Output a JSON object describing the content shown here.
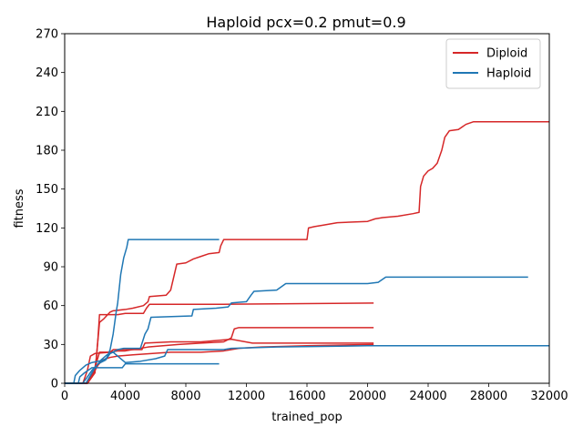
{
  "chart_data": {
    "type": "line",
    "title": "Haploid pcx=0.2 pmut=0.9",
    "xlabel": "trained_pop",
    "ylabel": "fitness",
    "xlim": [
      0,
      32000
    ],
    "ylim": [
      0,
      270
    ],
    "xticks": [
      0,
      4000,
      8000,
      12000,
      16000,
      20000,
      24000,
      28000,
      32000
    ],
    "yticks": [
      0,
      30,
      60,
      90,
      120,
      150,
      180,
      210,
      240,
      270
    ],
    "grid": false,
    "legend_position": "top-right",
    "colors": {
      "Diploid": "#d62728",
      "Haploid": "#1f77b4"
    },
    "series": [
      {
        "name": "Diploid",
        "run": 1,
        "points": [
          [
            0,
            0
          ],
          [
            1500,
            0
          ],
          [
            1800,
            5
          ],
          [
            2000,
            12
          ],
          [
            2100,
            20
          ],
          [
            2200,
            35
          ],
          [
            2300,
            53
          ],
          [
            3500,
            53
          ],
          [
            4000,
            54
          ],
          [
            5200,
            54
          ],
          [
            5400,
            58
          ],
          [
            5600,
            61
          ],
          [
            8000,
            61
          ],
          [
            10500,
            61
          ],
          [
            20400,
            62
          ]
        ]
      },
      {
        "name": "Diploid",
        "run": 2,
        "points": [
          [
            0,
            0
          ],
          [
            1500,
            0
          ],
          [
            1700,
            5
          ],
          [
            2000,
            12
          ],
          [
            2300,
            24
          ],
          [
            3000,
            24
          ],
          [
            3200,
            26
          ],
          [
            5100,
            26
          ],
          [
            5300,
            31
          ],
          [
            7000,
            32
          ],
          [
            9000,
            32
          ],
          [
            11000,
            34
          ],
          [
            12400,
            31
          ],
          [
            20400,
            31
          ]
        ]
      },
      {
        "name": "Diploid",
        "run": 3,
        "points": [
          [
            0,
            0
          ],
          [
            1200,
            0
          ],
          [
            1500,
            10
          ],
          [
            1700,
            21
          ],
          [
            2000,
            23
          ],
          [
            3000,
            24
          ],
          [
            3500,
            25
          ],
          [
            4000,
            25
          ],
          [
            5500,
            28
          ],
          [
            7500,
            30
          ],
          [
            9000,
            31
          ],
          [
            10500,
            32
          ],
          [
            11000,
            35
          ],
          [
            11200,
            42
          ],
          [
            11500,
            43
          ],
          [
            20400,
            43
          ]
        ]
      },
      {
        "name": "Diploid",
        "run": 4,
        "points": [
          [
            0,
            0
          ],
          [
            1500,
            0
          ],
          [
            1800,
            6
          ],
          [
            2200,
            14
          ],
          [
            2500,
            18
          ],
          [
            3000,
            20
          ],
          [
            3500,
            21
          ],
          [
            4500,
            22
          ],
          [
            5800,
            23
          ],
          [
            7000,
            24
          ],
          [
            9000,
            24
          ],
          [
            10500,
            25
          ],
          [
            11500,
            27
          ],
          [
            13000,
            28
          ],
          [
            16000,
            29
          ],
          [
            20400,
            30
          ]
        ]
      },
      {
        "name": "Diploid",
        "run": 5,
        "points": [
          [
            0,
            0
          ],
          [
            1500,
            0
          ],
          [
            2000,
            8
          ],
          [
            2300,
            47
          ],
          [
            2600,
            50
          ],
          [
            3000,
            55
          ],
          [
            3200,
            56
          ],
          [
            4000,
            57
          ],
          [
            4500,
            58
          ],
          [
            5200,
            60
          ],
          [
            5500,
            63
          ],
          [
            5600,
            67
          ],
          [
            6700,
            68
          ],
          [
            7000,
            72
          ],
          [
            7400,
            92
          ],
          [
            8000,
            93
          ],
          [
            8500,
            96
          ],
          [
            9000,
            98
          ],
          [
            9500,
            100
          ],
          [
            10200,
            101
          ],
          [
            10300,
            106
          ],
          [
            10500,
            111
          ],
          [
            16000,
            111
          ],
          [
            16100,
            120
          ],
          [
            16500,
            121
          ],
          [
            17000,
            122
          ],
          [
            18000,
            124
          ],
          [
            20000,
            125
          ],
          [
            20500,
            127
          ],
          [
            21000,
            128
          ],
          [
            22000,
            129
          ],
          [
            23000,
            131
          ],
          [
            23400,
            132
          ],
          [
            23500,
            152
          ],
          [
            23700,
            160
          ],
          [
            24000,
            164
          ],
          [
            24300,
            166
          ],
          [
            24600,
            170
          ],
          [
            24900,
            180
          ],
          [
            25100,
            190
          ],
          [
            25400,
            195
          ],
          [
            26000,
            196
          ],
          [
            26500,
            200
          ],
          [
            27000,
            202
          ],
          [
            32000,
            202
          ]
        ]
      },
      {
        "name": "Haploid",
        "run": 1,
        "points": [
          [
            0,
            0
          ],
          [
            600,
            0
          ],
          [
            700,
            6
          ],
          [
            1000,
            10
          ],
          [
            1400,
            14
          ],
          [
            1800,
            16
          ],
          [
            2200,
            17
          ],
          [
            2600,
            18
          ],
          [
            2800,
            20
          ],
          [
            3000,
            26
          ],
          [
            3200,
            38
          ],
          [
            3400,
            55
          ],
          [
            3500,
            62
          ],
          [
            3700,
            84
          ],
          [
            3900,
            97
          ],
          [
            4100,
            105
          ],
          [
            4200,
            111
          ],
          [
            10200,
            111
          ]
        ]
      },
      {
        "name": "Haploid",
        "run": 2,
        "points": [
          [
            0,
            0
          ],
          [
            900,
            0
          ],
          [
            1000,
            5
          ],
          [
            1300,
            8
          ],
          [
            1800,
            12
          ],
          [
            3800,
            12
          ],
          [
            4000,
            15
          ],
          [
            10200,
            15
          ]
        ]
      },
      {
        "name": "Haploid",
        "run": 3,
        "points": [
          [
            0,
            0
          ],
          [
            1200,
            0
          ],
          [
            1500,
            5
          ],
          [
            1800,
            10
          ],
          [
            2200,
            15
          ],
          [
            2700,
            18
          ],
          [
            3000,
            23
          ],
          [
            3500,
            26
          ],
          [
            3900,
            27
          ],
          [
            5000,
            27
          ],
          [
            5300,
            38
          ],
          [
            5500,
            42
          ],
          [
            5700,
            51
          ],
          [
            8400,
            52
          ],
          [
            8500,
            57
          ],
          [
            10000,
            58
          ],
          [
            10800,
            59
          ],
          [
            11000,
            62
          ],
          [
            12000,
            63
          ],
          [
            12300,
            68
          ],
          [
            12500,
            71
          ],
          [
            14000,
            72
          ],
          [
            14600,
            77
          ],
          [
            20000,
            77
          ],
          [
            20700,
            78
          ],
          [
            21200,
            82
          ],
          [
            30600,
            82
          ]
        ]
      },
      {
        "name": "Haploid",
        "run": 4,
        "points": [
          [
            0,
            0
          ],
          [
            1400,
            0
          ],
          [
            1700,
            6
          ],
          [
            2000,
            12
          ],
          [
            2400,
            18
          ],
          [
            2800,
            22
          ],
          [
            3200,
            24
          ],
          [
            4000,
            16
          ],
          [
            5000,
            17
          ],
          [
            6000,
            19
          ],
          [
            6600,
            21
          ],
          [
            6800,
            26
          ],
          [
            10500,
            26
          ],
          [
            11000,
            27
          ],
          [
            14000,
            28
          ],
          [
            20000,
            29
          ],
          [
            28000,
            29
          ],
          [
            32000,
            29
          ]
        ]
      }
    ]
  }
}
